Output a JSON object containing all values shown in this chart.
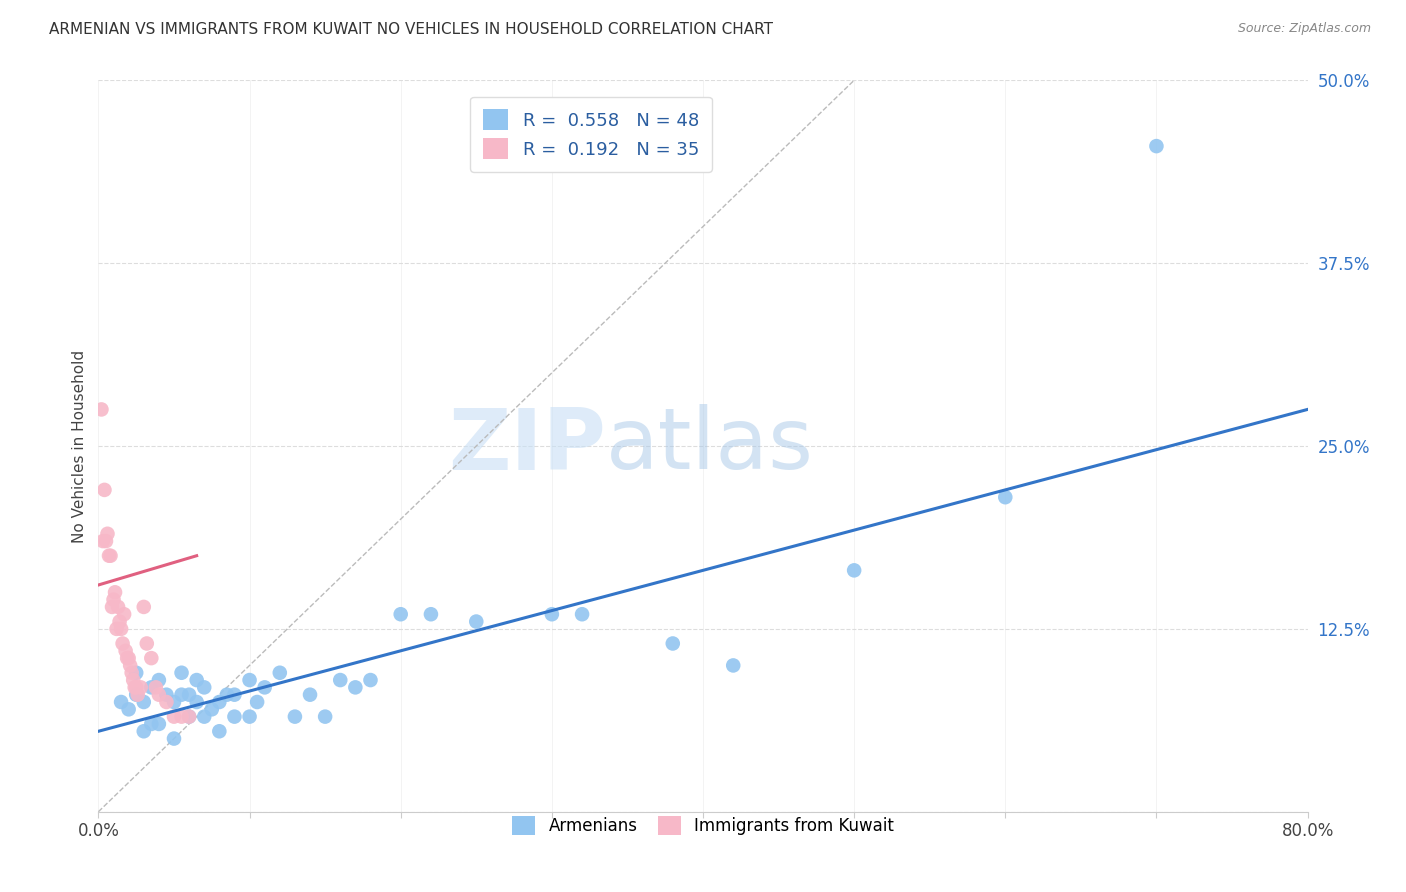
{
  "title": "ARMENIAN VS IMMIGRANTS FROM KUWAIT NO VEHICLES IN HOUSEHOLD CORRELATION CHART",
  "source": "Source: ZipAtlas.com",
  "ylabel": "No Vehicles in Household",
  "xlim": [
    0,
    0.8
  ],
  "ylim": [
    0,
    0.5
  ],
  "xticks": [
    0.0,
    0.1,
    0.2,
    0.3,
    0.4,
    0.5,
    0.6,
    0.7,
    0.8
  ],
  "xticklabels": [
    "0.0%",
    "",
    "",
    "",
    "",
    "",
    "",
    "",
    "80.0%"
  ],
  "yticks": [
    0.0,
    0.125,
    0.25,
    0.375,
    0.5
  ],
  "yticklabels": [
    "",
    "12.5%",
    "25.0%",
    "37.5%",
    "50.0%"
  ],
  "legend_blue_label": "R =  0.558   N = 48",
  "legend_pink_label": "R =  0.192   N = 35",
  "blue_color": "#92C5F0",
  "pink_color": "#F7B8C8",
  "blue_line_color": "#3375C8",
  "pink_line_color": "#E06080",
  "watermark_zip": "ZIP",
  "watermark_atlas": "atlas",
  "blue_scatter_x": [
    0.015,
    0.02,
    0.025,
    0.025,
    0.03,
    0.03,
    0.035,
    0.035,
    0.04,
    0.04,
    0.045,
    0.05,
    0.05,
    0.055,
    0.055,
    0.06,
    0.06,
    0.065,
    0.065,
    0.07,
    0.07,
    0.075,
    0.08,
    0.08,
    0.085,
    0.09,
    0.09,
    0.1,
    0.1,
    0.105,
    0.11,
    0.12,
    0.13,
    0.14,
    0.15,
    0.16,
    0.17,
    0.18,
    0.2,
    0.22,
    0.25,
    0.3,
    0.32,
    0.38,
    0.42,
    0.5,
    0.6,
    0.7
  ],
  "blue_scatter_y": [
    0.075,
    0.07,
    0.08,
    0.095,
    0.055,
    0.075,
    0.06,
    0.085,
    0.06,
    0.09,
    0.08,
    0.05,
    0.075,
    0.08,
    0.095,
    0.065,
    0.08,
    0.075,
    0.09,
    0.065,
    0.085,
    0.07,
    0.055,
    0.075,
    0.08,
    0.065,
    0.08,
    0.065,
    0.09,
    0.075,
    0.085,
    0.095,
    0.065,
    0.08,
    0.065,
    0.09,
    0.085,
    0.09,
    0.135,
    0.135,
    0.13,
    0.135,
    0.135,
    0.115,
    0.1,
    0.165,
    0.215,
    0.455
  ],
  "pink_scatter_x": [
    0.002,
    0.003,
    0.004,
    0.005,
    0.006,
    0.007,
    0.008,
    0.009,
    0.01,
    0.011,
    0.012,
    0.013,
    0.014,
    0.015,
    0.016,
    0.017,
    0.018,
    0.019,
    0.02,
    0.021,
    0.022,
    0.023,
    0.024,
    0.025,
    0.026,
    0.028,
    0.03,
    0.032,
    0.035,
    0.038,
    0.04,
    0.045,
    0.05,
    0.055,
    0.06
  ],
  "pink_scatter_y": [
    0.275,
    0.185,
    0.22,
    0.185,
    0.19,
    0.175,
    0.175,
    0.14,
    0.145,
    0.15,
    0.125,
    0.14,
    0.13,
    0.125,
    0.115,
    0.135,
    0.11,
    0.105,
    0.105,
    0.1,
    0.095,
    0.09,
    0.085,
    0.085,
    0.08,
    0.085,
    0.14,
    0.115,
    0.105,
    0.085,
    0.08,
    0.075,
    0.065,
    0.065,
    0.065
  ],
  "blue_line_x": [
    0.0,
    0.8
  ],
  "blue_line_y": [
    0.055,
    0.275
  ],
  "pink_line_x": [
    0.0,
    0.065
  ],
  "pink_line_y": [
    0.155,
    0.175
  ],
  "diag_line_x": [
    0.0,
    0.5
  ],
  "diag_line_y": [
    0.0,
    0.5
  ]
}
